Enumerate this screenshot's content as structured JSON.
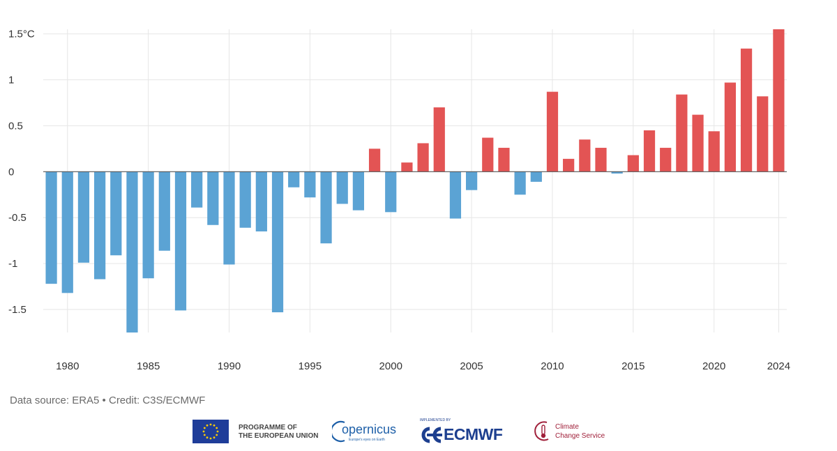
{
  "chart_data": {
    "type": "bar",
    "title": "",
    "xlabel": "",
    "ylabel": "",
    "y_unit": "°C",
    "ylim": [
      -1.75,
      1.55
    ],
    "yticks": [
      {
        "value": 1.5,
        "label": "1.5°C"
      },
      {
        "value": 1,
        "label": "1"
      },
      {
        "value": 0.5,
        "label": "0.5"
      },
      {
        "value": 0,
        "label": "0"
      },
      {
        "value": -0.5,
        "label": "-0.5"
      },
      {
        "value": -1,
        "label": "-1"
      },
      {
        "value": -1.5,
        "label": "-1.5"
      }
    ],
    "xticks": [
      "1980",
      "1985",
      "1990",
      "1995",
      "2000",
      "2005",
      "2010",
      "2015",
      "2020",
      "2024"
    ],
    "grid": true,
    "colors": {
      "positive": "#e35454",
      "negative": "#5ba3d4",
      "grid": "#e6e6e6",
      "axis": "#555555"
    },
    "categories": [
      "1979",
      "1980",
      "1981",
      "1982",
      "1983",
      "1984",
      "1985",
      "1986",
      "1987",
      "1988",
      "1989",
      "1990",
      "1991",
      "1992",
      "1993",
      "1994",
      "1995",
      "1996",
      "1997",
      "1998",
      "1999",
      "2000",
      "2001",
      "2002",
      "2003",
      "2004",
      "2005",
      "2006",
      "2007",
      "2008",
      "2009",
      "2010",
      "2011",
      "2012",
      "2013",
      "2014",
      "2015",
      "2016",
      "2017",
      "2018",
      "2019",
      "2020",
      "2021",
      "2022",
      "2023",
      "2024"
    ],
    "values": [
      -1.22,
      -1.32,
      -0.99,
      -1.17,
      -0.91,
      -1.75,
      -1.16,
      -0.86,
      -1.51,
      -0.39,
      -0.58,
      -1.01,
      -0.61,
      -0.65,
      -1.53,
      -0.17,
      -0.28,
      -0.78,
      -0.35,
      -0.42,
      0.25,
      -0.44,
      0.1,
      0.31,
      0.7,
      -0.51,
      -0.2,
      0.37,
      0.26,
      -0.25,
      -0.11,
      0.87,
      0.14,
      0.35,
      0.26,
      -0.02,
      0.18,
      0.45,
      0.26,
      0.84,
      0.62,
      0.44,
      0.97,
      1.34,
      0.82,
      1.55
    ]
  },
  "credit": "Data source: ERA5 • Credit: C3S/ECMWF",
  "logos": {
    "eu_line1": "PROGRAMME OF",
    "eu_line2": "THE EUROPEAN UNION",
    "copernicus": "opernicus",
    "copernicus_tag": "Europe's eyes on Earth",
    "ecmwf_small": "IMPLEMENTED BY",
    "ecmwf": "ECMWF",
    "c3s_line1": "Climate",
    "c3s_line2": "Change Service"
  }
}
